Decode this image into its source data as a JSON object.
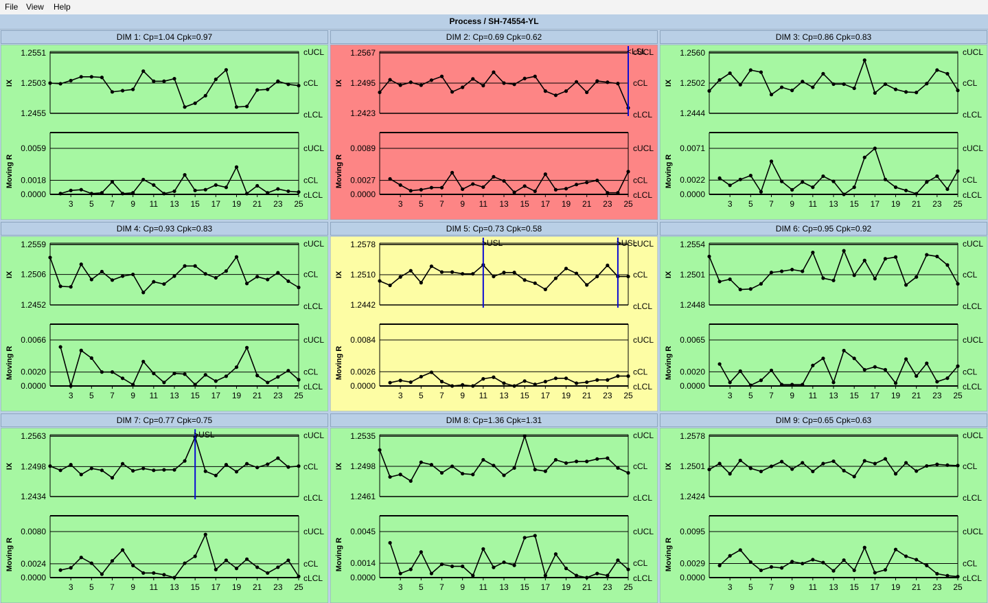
{
  "menu": {
    "file": "File",
    "view": "View",
    "help": "Help"
  },
  "window": {
    "title": "Process / SH-74554-YL"
  },
  "colors": {
    "good": "#a6f7a2",
    "bad": "#fd8585",
    "warn": "#fdfda4",
    "marker": "#0b0bd4"
  },
  "labels": {
    "ucl": "cUCL",
    "cl": "cCL",
    "lcl": "cLCL",
    "ix": "IX",
    "mr": "Moving R"
  },
  "x_tick_labels": [
    "3",
    "5",
    "7",
    "9",
    "11",
    "13",
    "15",
    "17",
    "19",
    "21",
    "23",
    "25"
  ],
  "chart_data": [
    {
      "type": "line",
      "title": "DIM 1: Cp=1.04 Cpk=0.97",
      "status": "good",
      "ix": {
        "ucl": 1.2551,
        "cl": 1.2503,
        "lcl": 1.2455,
        "values": [
          1.2503,
          1.2502,
          1.2507,
          1.2513,
          1.2513,
          1.2512,
          1.2489,
          1.2491,
          1.2493,
          1.2522,
          1.2506,
          1.2506,
          1.251,
          1.2465,
          1.2471,
          1.2483,
          1.2509,
          1.2524,
          1.2465,
          1.2466,
          1.2492,
          1.2493,
          1.2506,
          1.2501,
          1.2499
        ]
      },
      "mr": {
        "ucl": 0.0059,
        "cl": 0.0018,
        "lcl": 0.0,
        "values": [
          null,
          0.0001,
          0.0005,
          0.0006,
          0.0001,
          0.0002,
          0.0016,
          0.0001,
          0.0002,
          0.0019,
          0.0012,
          0.0001,
          0.0004,
          0.0025,
          0.0005,
          0.0006,
          0.0012,
          0.0009,
          0.0035,
          0.0001,
          0.0011,
          0.0002,
          0.0007,
          0.0004,
          0.0003
        ]
      },
      "markers": []
    },
    {
      "type": "line",
      "title": "DIM 2: Cp=0.69 Cpk=0.62",
      "status": "bad",
      "ix": {
        "ucl": 1.2567,
        "cl": 1.2495,
        "lcl": 1.2423,
        "values": [
          1.2473,
          1.2503,
          1.249,
          1.2497,
          1.249,
          1.2502,
          1.2511,
          1.2474,
          1.2485,
          1.2505,
          1.2489,
          1.2521,
          1.2495,
          1.2492,
          1.2506,
          1.2511,
          1.2476,
          1.2466,
          1.2476,
          1.2498,
          1.2473,
          1.25,
          1.2497,
          1.2494,
          1.2436
        ]
      },
      "mr": {
        "ucl": 0.0089,
        "cl": 0.0027,
        "lcl": 0.0,
        "values": [
          null,
          0.003,
          0.0018,
          0.0007,
          0.0009,
          0.0013,
          0.0013,
          0.0042,
          0.001,
          0.002,
          0.0014,
          0.0034,
          0.0026,
          0.0004,
          0.0016,
          0.0006,
          0.0039,
          0.0009,
          0.0011,
          0.0019,
          0.0023,
          0.0027,
          0.0003,
          0.0003,
          0.0044
        ]
      },
      "markers": [
        {
          "index": 25,
          "label": "<LSL"
        }
      ]
    },
    {
      "type": "line",
      "title": "DIM 3: Cp=0.86 Cpk=0.83",
      "status": "good",
      "ix": {
        "ucl": 1.256,
        "cl": 1.2502,
        "lcl": 1.2444,
        "values": [
          1.2487,
          1.2508,
          1.2521,
          1.2499,
          1.2527,
          1.2523,
          1.248,
          1.2494,
          1.2488,
          1.2505,
          1.2494,
          1.252,
          1.25,
          1.25,
          1.2492,
          1.2546,
          1.2483,
          1.25,
          1.249,
          1.2485,
          1.2484,
          1.2501,
          1.2527,
          1.252,
          1.2488
        ]
      },
      "mr": {
        "ucl": 0.0071,
        "cl": 0.0022,
        "lcl": 0.0,
        "values": [
          null,
          0.0025,
          0.0014,
          0.0023,
          0.0029,
          0.0004,
          0.0051,
          0.002,
          0.0007,
          0.0019,
          0.0011,
          0.0028,
          0.002,
          0.0,
          0.0011,
          0.0057,
          0.0071,
          0.0023,
          0.0011,
          0.0006,
          0.0001,
          0.0019,
          0.0028,
          0.0008,
          0.0036
        ]
      },
      "markers": []
    },
    {
      "type": "line",
      "title": "DIM 4: Cp=0.93 Cpk=0.83",
      "status": "good",
      "ix": {
        "ucl": 1.2559,
        "cl": 1.2506,
        "lcl": 1.2452,
        "values": [
          1.2536,
          1.2485,
          1.2484,
          1.2524,
          1.2497,
          1.2511,
          1.2496,
          1.2503,
          1.2506,
          1.2474,
          1.2493,
          1.2489,
          1.2503,
          1.2521,
          1.2521,
          1.2507,
          1.25,
          1.2512,
          1.2537,
          1.249,
          1.2502,
          1.2497,
          1.2509,
          1.2494,
          1.2483
        ]
      },
      "mr": {
        "ucl": 0.0066,
        "cl": 0.002,
        "lcl": 0.0,
        "values": [
          null,
          0.0056,
          0.0,
          0.0051,
          0.004,
          0.002,
          0.002,
          0.0011,
          0.0002,
          0.0035,
          0.0018,
          0.0005,
          0.0018,
          0.0017,
          0.0002,
          0.0016,
          0.0007,
          0.0014,
          0.0027,
          0.0055,
          0.0015,
          0.0005,
          0.0013,
          0.0022,
          0.0009
        ]
      },
      "markers": []
    },
    {
      "type": "line",
      "title": "DIM 5: Cp=0.73 Cpk=0.58",
      "status": "warn",
      "ix": {
        "ucl": 1.2578,
        "cl": 1.251,
        "lcl": 1.2442,
        "values": [
          1.2496,
          1.2486,
          1.2505,
          1.2519,
          1.2492,
          1.2529,
          1.2516,
          1.2516,
          1.2512,
          1.2512,
          1.2532,
          1.2506,
          1.2515,
          1.2515,
          1.2498,
          1.2491,
          1.2477,
          1.2502,
          1.2524,
          1.2513,
          1.2487,
          1.2506,
          1.2531,
          1.2506,
          1.2506
        ]
      },
      "mr": {
        "ucl": 0.0084,
        "cl": 0.0026,
        "lcl": 0.0,
        "values": [
          null,
          0.0006,
          0.001,
          0.0007,
          0.0017,
          0.0025,
          0.0008,
          0.0,
          0.0002,
          0.0,
          0.0013,
          0.0016,
          0.0005,
          0.0,
          0.0009,
          0.0003,
          0.0008,
          0.0014,
          0.0014,
          0.0005,
          0.0007,
          0.0011,
          0.0011,
          0.0018,
          0.0018
        ]
      },
      "markers": [
        {
          "index": 11,
          "label": ">USL"
        },
        {
          "index": 24,
          "label": ">USL"
        }
      ]
    },
    {
      "type": "line",
      "title": "DIM 6: Cp=0.95 Cpk=0.92",
      "status": "good",
      "ix": {
        "ucl": 1.2554,
        "cl": 1.2501,
        "lcl": 1.2448,
        "values": [
          1.2533,
          1.2489,
          1.2493,
          1.2475,
          1.2476,
          1.2485,
          1.2505,
          1.2507,
          1.251,
          1.2507,
          1.254,
          1.2495,
          1.2491,
          1.2543,
          1.25,
          1.2526,
          1.2494,
          1.2529,
          1.2532,
          1.2483,
          1.2497,
          1.2536,
          1.2533,
          1.2518,
          1.2485
        ]
      },
      "mr": {
        "ucl": 0.0065,
        "cl": 0.002,
        "lcl": 0.0,
        "values": [
          null,
          0.0031,
          0.0005,
          0.0021,
          0.0001,
          0.0008,
          0.0022,
          0.0002,
          0.0002,
          0.0002,
          0.0029,
          0.0039,
          0.0005,
          0.005,
          0.0039,
          0.0023,
          0.0027,
          0.0023,
          0.0004,
          0.0038,
          0.0014,
          0.0032,
          0.0006,
          0.0011,
          0.0028
        ]
      },
      "markers": []
    },
    {
      "type": "line",
      "title": "DIM 7: Cp=0.77 Cpk=0.75",
      "status": "good",
      "ix": {
        "ucl": 1.2563,
        "cl": 1.2498,
        "lcl": 1.2434,
        "values": [
          1.2499,
          1.249,
          1.2502,
          1.2481,
          1.2494,
          1.249,
          1.2474,
          1.2504,
          1.2489,
          1.2494,
          1.249,
          1.2491,
          1.2491,
          1.251,
          1.2561,
          1.2488,
          1.2479,
          1.2502,
          1.2487,
          1.2504,
          1.2496,
          1.2503,
          1.2516,
          1.2497,
          1.2499
        ]
      },
      "mr": {
        "ucl": 0.008,
        "cl": 0.0024,
        "lcl": 0.0,
        "values": [
          null,
          0.0013,
          0.0017,
          0.0035,
          0.0025,
          0.0006,
          0.0029,
          0.0048,
          0.0021,
          0.0008,
          0.0008,
          0.0005,
          0.0,
          0.0025,
          0.0037,
          0.0075,
          0.0014,
          0.003,
          0.0016,
          0.0032,
          0.0018,
          0.0008,
          0.0018,
          0.003,
          0.0002
        ]
      },
      "markers": [
        {
          "index": 15,
          "label": ">USL"
        }
      ]
    },
    {
      "type": "line",
      "title": "DIM 8: Cp=1.36 Cpk=1.31",
      "status": "good",
      "ix": {
        "ucl": 1.2535,
        "cl": 1.2498,
        "lcl": 1.2461,
        "values": [
          1.2518,
          1.2485,
          1.2488,
          1.248,
          1.2503,
          1.25,
          1.249,
          1.2498,
          1.2489,
          1.2488,
          1.2506,
          1.2499,
          1.2487,
          1.2496,
          1.2535,
          1.2494,
          1.2492,
          1.2506,
          1.2502,
          1.2504,
          1.2504,
          1.2507,
          1.2508,
          1.2496,
          1.249
        ]
      },
      "mr": {
        "ucl": 0.0045,
        "cl": 0.0014,
        "lcl": 0.0,
        "values": [
          null,
          0.0034,
          0.0004,
          0.0008,
          0.0025,
          0.0004,
          0.0013,
          0.0011,
          0.0011,
          0.0002,
          0.0028,
          0.001,
          0.0015,
          0.0012,
          0.0039,
          0.0041,
          0.0002,
          0.0023,
          0.0009,
          0.0002,
          0.0,
          0.0004,
          0.0002,
          0.0017,
          0.0008
        ]
      },
      "markers": []
    },
    {
      "type": "line",
      "title": "DIM 9: Cp=0.65 Cpk=0.63",
      "status": "good",
      "ix": {
        "ucl": 1.2578,
        "cl": 1.2501,
        "lcl": 1.2424,
        "values": [
          1.2493,
          1.2508,
          1.2482,
          1.2516,
          1.2496,
          1.2488,
          1.2501,
          1.2513,
          1.2494,
          1.251,
          1.2488,
          1.2508,
          1.2514,
          1.249,
          1.2475,
          1.2515,
          1.2508,
          1.252,
          1.2482,
          1.251,
          1.2489,
          1.2502,
          1.2506,
          1.2504,
          1.2503
        ]
      },
      "mr": {
        "ucl": 0.0095,
        "cl": 0.0029,
        "lcl": 0.0,
        "values": [
          null,
          0.0025,
          0.0045,
          0.0057,
          0.0032,
          0.0015,
          0.0022,
          0.002,
          0.0033,
          0.0029,
          0.0037,
          0.0031,
          0.0014,
          0.0036,
          0.0015,
          0.0062,
          0.001,
          0.0016,
          0.0058,
          0.0044,
          0.0037,
          0.0025,
          0.0008,
          0.0004,
          0.0002
        ]
      },
      "markers": []
    }
  ]
}
